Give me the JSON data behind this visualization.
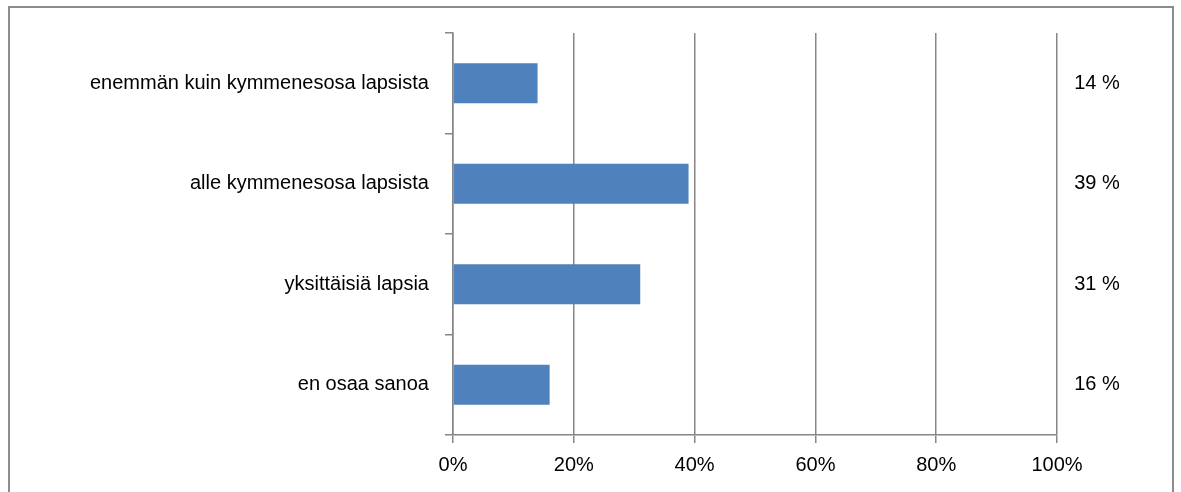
{
  "chart_data": {
    "type": "bar",
    "orientation": "horizontal",
    "categories": [
      "enemmän kuin kymmenesosa lapsista",
      "alle kymmenesosa lapsista",
      "yksittäisiä lapsia",
      "en osaa sanoa"
    ],
    "values": [
      14,
      39,
      31,
      16
    ],
    "color": "#4f81bd",
    "value_labels": [
      "14 %",
      "39 %",
      "31 %",
      "16 %"
    ],
    "xlim": [
      0,
      100
    ],
    "xticks": [
      {
        "value": 0,
        "label": "0%"
      },
      {
        "value": 20,
        "label": "20%"
      },
      {
        "value": 40,
        "label": "40%"
      },
      {
        "value": 60,
        "label": "60%"
      },
      {
        "value": 80,
        "label": "80%"
      },
      {
        "value": 100,
        "label": "100%"
      }
    ],
    "grid": "x"
  }
}
